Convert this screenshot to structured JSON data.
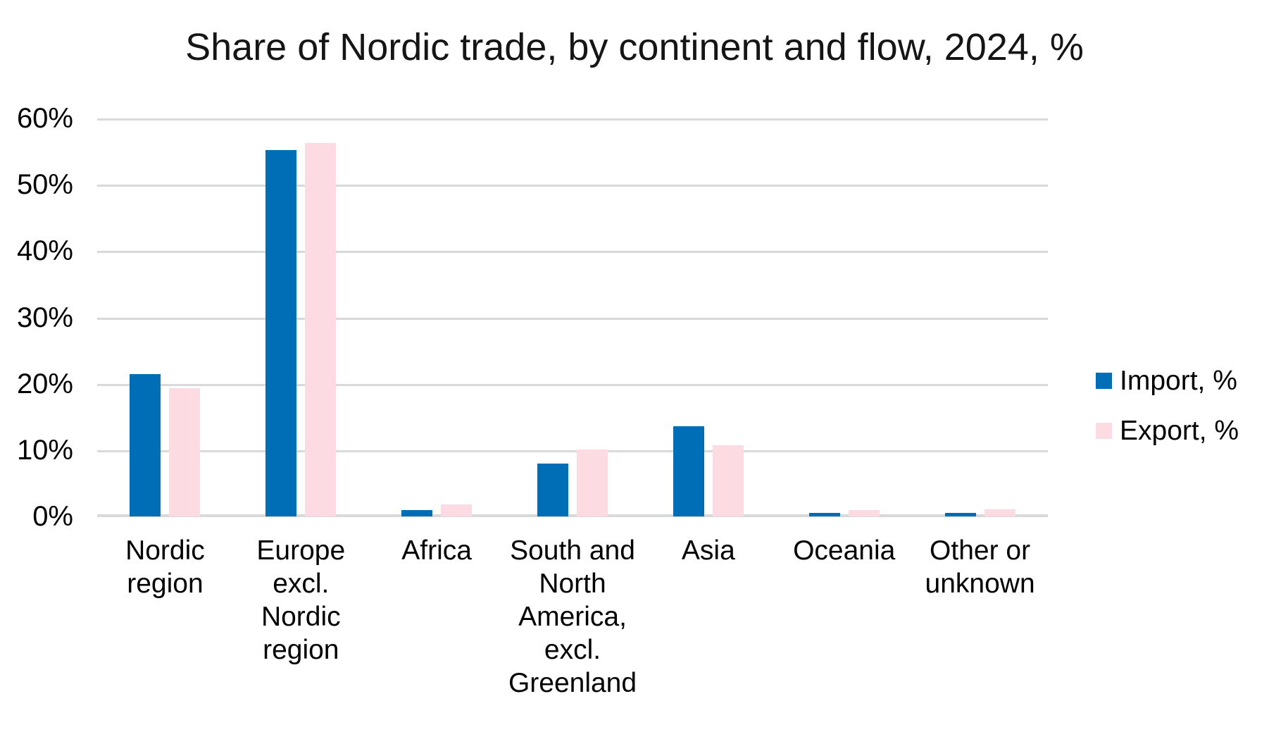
{
  "chart_data": {
    "type": "bar",
    "title": "Share of Nordic trade, by continent and flow, 2024, %",
    "categories": [
      {
        "label": "Nordic region",
        "lines": [
          "Nordic",
          "region"
        ]
      },
      {
        "label": "Europe excl. Nordic region",
        "lines": [
          "Europe",
          "excl.",
          "Nordic",
          "region"
        ]
      },
      {
        "label": "Africa",
        "lines": [
          "Africa"
        ]
      },
      {
        "label": "South and North America, excl. Greenland",
        "lines": [
          "South and",
          "North",
          "America,",
          "excl.",
          "Greenland"
        ]
      },
      {
        "label": "Asia",
        "lines": [
          "Asia"
        ]
      },
      {
        "label": "Oceania",
        "lines": [
          "Oceania"
        ]
      },
      {
        "label": "Other or unknown",
        "lines": [
          "Other or",
          "unknown"
        ]
      }
    ],
    "series": [
      {
        "name": "Import, %",
        "color": "#006eb6",
        "values": [
          21.4,
          55.2,
          1.0,
          8.0,
          13.6,
          0.5,
          0.5
        ]
      },
      {
        "name": "Export, %",
        "color": "#fcdce2",
        "values": [
          19.3,
          56.3,
          1.8,
          10.1,
          10.7,
          1.0,
          1.1
        ]
      }
    ],
    "y_axis": {
      "ticks": [
        "60%",
        "50%",
        "40%",
        "30%",
        "20%",
        "10%",
        "0%"
      ],
      "tick_values": [
        60,
        50,
        40,
        30,
        20,
        10,
        0
      ],
      "min": 0,
      "max": 60,
      "grid": true,
      "grid_color": "#d9d9d9"
    },
    "legend": {
      "position": "right",
      "entries": [
        "Import, %",
        "Export, %"
      ]
    }
  }
}
